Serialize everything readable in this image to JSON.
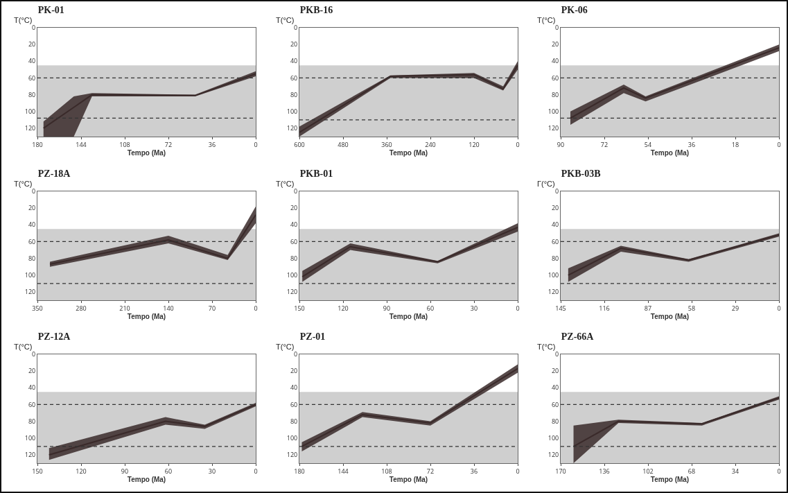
{
  "chart_data": [
    {
      "type": "line",
      "title": "PK-01",
      "xlabel": "Tempo (Ma)",
      "ylabel": "T(°C)",
      "x": [
        175,
        150,
        135,
        50,
        0
      ],
      "series": [
        {
          "color": "#3a2a2a",
          "values": [
            120,
            95,
            80,
            81,
            55
          ],
          "lower": [
            112,
            82,
            78,
            80,
            52
          ],
          "upper": [
            130,
            130,
            82,
            82,
            58
          ]
        }
      ],
      "xlim": [
        180,
        0
      ],
      "xticks": [
        180,
        144,
        108,
        72,
        36,
        0
      ],
      "ylim": [
        130,
        0
      ],
      "yticks": [
        0,
        20,
        40,
        60,
        80,
        100,
        120
      ],
      "ref_lines": [
        {
          "axis": "y",
          "value": 60,
          "line_style": "dashed",
          "color": "#333333"
        },
        {
          "axis": "y",
          "value": 108,
          "line_style": "dashed",
          "color": "#333333"
        }
      ],
      "bands": [
        {
          "axis": "y",
          "from": 45,
          "to": 130,
          "color": "#cfcfcf"
        }
      ],
      "grid": false
    },
    {
      "type": "line",
      "title": "PKB-16",
      "xlabel": "Tempo (Ma)",
      "ylabel": "T(°C)",
      "x": [
        600,
        350,
        120,
        40,
        0
      ],
      "series": [
        {
          "color": "#3a2a2a",
          "values": [
            125,
            58,
            56,
            73,
            45
          ],
          "lower": [
            118,
            57,
            54,
            70,
            40
          ],
          "upper": [
            130,
            60,
            60,
            75,
            50
          ]
        }
      ],
      "xlim": [
        600,
        0
      ],
      "xticks": [
        600,
        480,
        360,
        240,
        120,
        0
      ],
      "ylim": [
        130,
        0
      ],
      "yticks": [
        0,
        20,
        40,
        60,
        80,
        100,
        120
      ],
      "ref_lines": [
        {
          "axis": "y",
          "value": 60,
          "line_style": "dashed",
          "color": "#333333"
        },
        {
          "axis": "y",
          "value": 110,
          "line_style": "dashed",
          "color": "#333333"
        }
      ],
      "bands": [
        {
          "axis": "y",
          "from": 45,
          "to": 130,
          "color": "#cfcfcf"
        }
      ],
      "grid": false
    },
    {
      "type": "line",
      "title": "PK-06",
      "xlabel": "Tempo (Ma)",
      "ylabel": "T(°C)",
      "x": [
        86,
        64,
        55,
        0
      ],
      "series": [
        {
          "color": "#3a2a2a",
          "values": [
            108,
            72,
            84,
            24
          ],
          "lower": [
            100,
            68,
            82,
            20
          ],
          "upper": [
            116,
            78,
            88,
            28
          ]
        }
      ],
      "xlim": [
        90,
        0
      ],
      "xticks": [
        90,
        72,
        54,
        36,
        18,
        0
      ],
      "ylim": [
        130,
        0
      ],
      "yticks": [
        0,
        20,
        40,
        60,
        80,
        100,
        120
      ],
      "ref_lines": [
        {
          "axis": "y",
          "value": 60,
          "line_style": "dashed",
          "color": "#333333"
        },
        {
          "axis": "y",
          "value": 108,
          "line_style": "dashed",
          "color": "#333333"
        }
      ],
      "bands": [
        {
          "axis": "y",
          "from": 45,
          "to": 130,
          "color": "#cfcfcf"
        }
      ],
      "grid": false
    },
    {
      "type": "line",
      "title": "PZ-18A",
      "xlabel": "Tempo (Ma)",
      "ylabel": "T(°C)",
      "x": [
        330,
        140,
        45,
        0
      ],
      "series": [
        {
          "color": "#3a2a2a",
          "values": [
            87,
            58,
            80,
            28
          ],
          "lower": [
            84,
            53,
            76,
            18
          ],
          "upper": [
            90,
            62,
            82,
            38
          ]
        }
      ],
      "xlim": [
        350,
        0
      ],
      "xticks": [
        350,
        280,
        210,
        140,
        70,
        0
      ],
      "ylim": [
        130,
        0
      ],
      "yticks": [
        0,
        20,
        40,
        60,
        80,
        100,
        120
      ],
      "ref_lines": [
        {
          "axis": "y",
          "value": 60,
          "line_style": "dashed",
          "color": "#333333"
        },
        {
          "axis": "y",
          "value": 110,
          "line_style": "dashed",
          "color": "#333333"
        }
      ],
      "bands": [
        {
          "axis": "y",
          "from": 45,
          "to": 130,
          "color": "#cfcfcf"
        }
      ],
      "grid": false
    },
    {
      "type": "line",
      "title": "PKB-01",
      "xlabel": "Tempo (Ma)",
      "ylabel": "T(°C)",
      "x": [
        148,
        115,
        55,
        0
      ],
      "series": [
        {
          "color": "#3a2a2a",
          "values": [
            102,
            66,
            84,
            43
          ],
          "lower": [
            95,
            62,
            83,
            38
          ],
          "upper": [
            108,
            70,
            86,
            48
          ]
        }
      ],
      "xlim": [
        150,
        0
      ],
      "xticks": [
        150,
        120,
        90,
        60,
        30,
        0
      ],
      "ylim": [
        130,
        0
      ],
      "yticks": [
        0,
        20,
        40,
        60,
        80,
        100,
        120
      ],
      "ref_lines": [
        {
          "axis": "y",
          "value": 60,
          "line_style": "dashed",
          "color": "#333333"
        },
        {
          "axis": "y",
          "value": 110,
          "line_style": "dashed",
          "color": "#333333"
        }
      ],
      "bands": [
        {
          "axis": "y",
          "from": 45,
          "to": 130,
          "color": "#cfcfcf"
        }
      ],
      "grid": false
    },
    {
      "type": "line",
      "title": "PKB-03B",
      "xlabel": "Tempo (Ma)",
      "ylabel": "Γ(°C)",
      "x": [
        140,
        105,
        60,
        0
      ],
      "series": [
        {
          "color": "#3a2a2a",
          "values": [
            100,
            68,
            82,
            52
          ],
          "lower": [
            92,
            65,
            81,
            50
          ],
          "upper": [
            108,
            72,
            84,
            54
          ]
        }
      ],
      "xlim": [
        145,
        0
      ],
      "xticks": [
        145,
        116,
        87,
        58,
        29,
        0
      ],
      "ylim": [
        130,
        0
      ],
      "yticks": [
        0,
        20,
        40,
        60,
        80,
        100,
        120
      ],
      "ref_lines": [
        {
          "axis": "y",
          "value": 60,
          "line_style": "dashed",
          "color": "#333333"
        },
        {
          "axis": "y",
          "value": 110,
          "line_style": "dashed",
          "color": "#333333"
        }
      ],
      "bands": [
        {
          "axis": "y",
          "from": 45,
          "to": 130,
          "color": "#cfcfcf"
        }
      ],
      "grid": false
    },
    {
      "type": "line",
      "title": "PZ-12A",
      "xlabel": "Tempo (Ma)",
      "ylabel": "T(°C)",
      "x": [
        142,
        62,
        35,
        0
      ],
      "series": [
        {
          "color": "#3a2a2a",
          "values": [
            120,
            80,
            86,
            60
          ],
          "lower": [
            112,
            75,
            84,
            58
          ],
          "upper": [
            126,
            84,
            89,
            62
          ]
        }
      ],
      "xlim": [
        150,
        0
      ],
      "xticks": [
        150,
        120,
        90,
        60,
        30,
        0
      ],
      "ylim": [
        130,
        0
      ],
      "yticks": [
        0,
        20,
        40,
        60,
        80,
        100,
        120
      ],
      "ref_lines": [
        {
          "axis": "y",
          "value": 60,
          "line_style": "dashed",
          "color": "#333333"
        },
        {
          "axis": "y",
          "value": 110,
          "line_style": "dashed",
          "color": "#333333"
        }
      ],
      "bands": [
        {
          "axis": "y",
          "from": 45,
          "to": 130,
          "color": "#cfcfcf"
        }
      ],
      "grid": false
    },
    {
      "type": "line",
      "title": "PZ-01",
      "xlabel": "Tempo (Ma)",
      "ylabel": "T(°C)",
      "x": [
        178,
        128,
        72,
        0
      ],
      "series": [
        {
          "color": "#3a2a2a",
          "values": [
            110,
            72,
            82,
            17
          ],
          "lower": [
            105,
            69,
            80,
            12
          ],
          "upper": [
            116,
            75,
            85,
            22
          ]
        }
      ],
      "xlim": [
        180,
        0
      ],
      "xticks": [
        180,
        144,
        108,
        72,
        36,
        0
      ],
      "ylim": [
        130,
        0
      ],
      "yticks": [
        0,
        20,
        40,
        60,
        80,
        100,
        120
      ],
      "ref_lines": [
        {
          "axis": "y",
          "value": 60,
          "line_style": "dashed",
          "color": "#333333"
        },
        {
          "axis": "y",
          "value": 110,
          "line_style": "dashed",
          "color": "#333333"
        }
      ],
      "bands": [
        {
          "axis": "y",
          "from": 45,
          "to": 130,
          "color": "#cfcfcf"
        }
      ],
      "grid": false
    },
    {
      "type": "line",
      "title": "PZ-66A",
      "xlabel": "Tempo (Ma)",
      "ylabel": "T(°C)",
      "x": [
        160,
        125,
        60,
        0
      ],
      "series": [
        {
          "color": "#3a2a2a",
          "values": [
            110,
            80,
            83,
            52
          ],
          "lower": [
            85,
            78,
            82,
            50
          ],
          "upper": [
            130,
            82,
            85,
            54
          ]
        }
      ],
      "xlim": [
        170,
        0
      ],
      "xticks": [
        170,
        136,
        102,
        68,
        34,
        0
      ],
      "ylim": [
        130,
        0
      ],
      "yticks": [
        0,
        20,
        40,
        60,
        80,
        100,
        120
      ],
      "ref_lines": [
        {
          "axis": "y",
          "value": 60,
          "line_style": "dashed",
          "color": "#333333"
        },
        {
          "axis": "y",
          "value": 110,
          "line_style": "dashed",
          "color": "#333333"
        }
      ],
      "bands": [
        {
          "axis": "y",
          "from": 45,
          "to": 130,
          "color": "#cfcfcf"
        }
      ],
      "grid": false
    }
  ]
}
